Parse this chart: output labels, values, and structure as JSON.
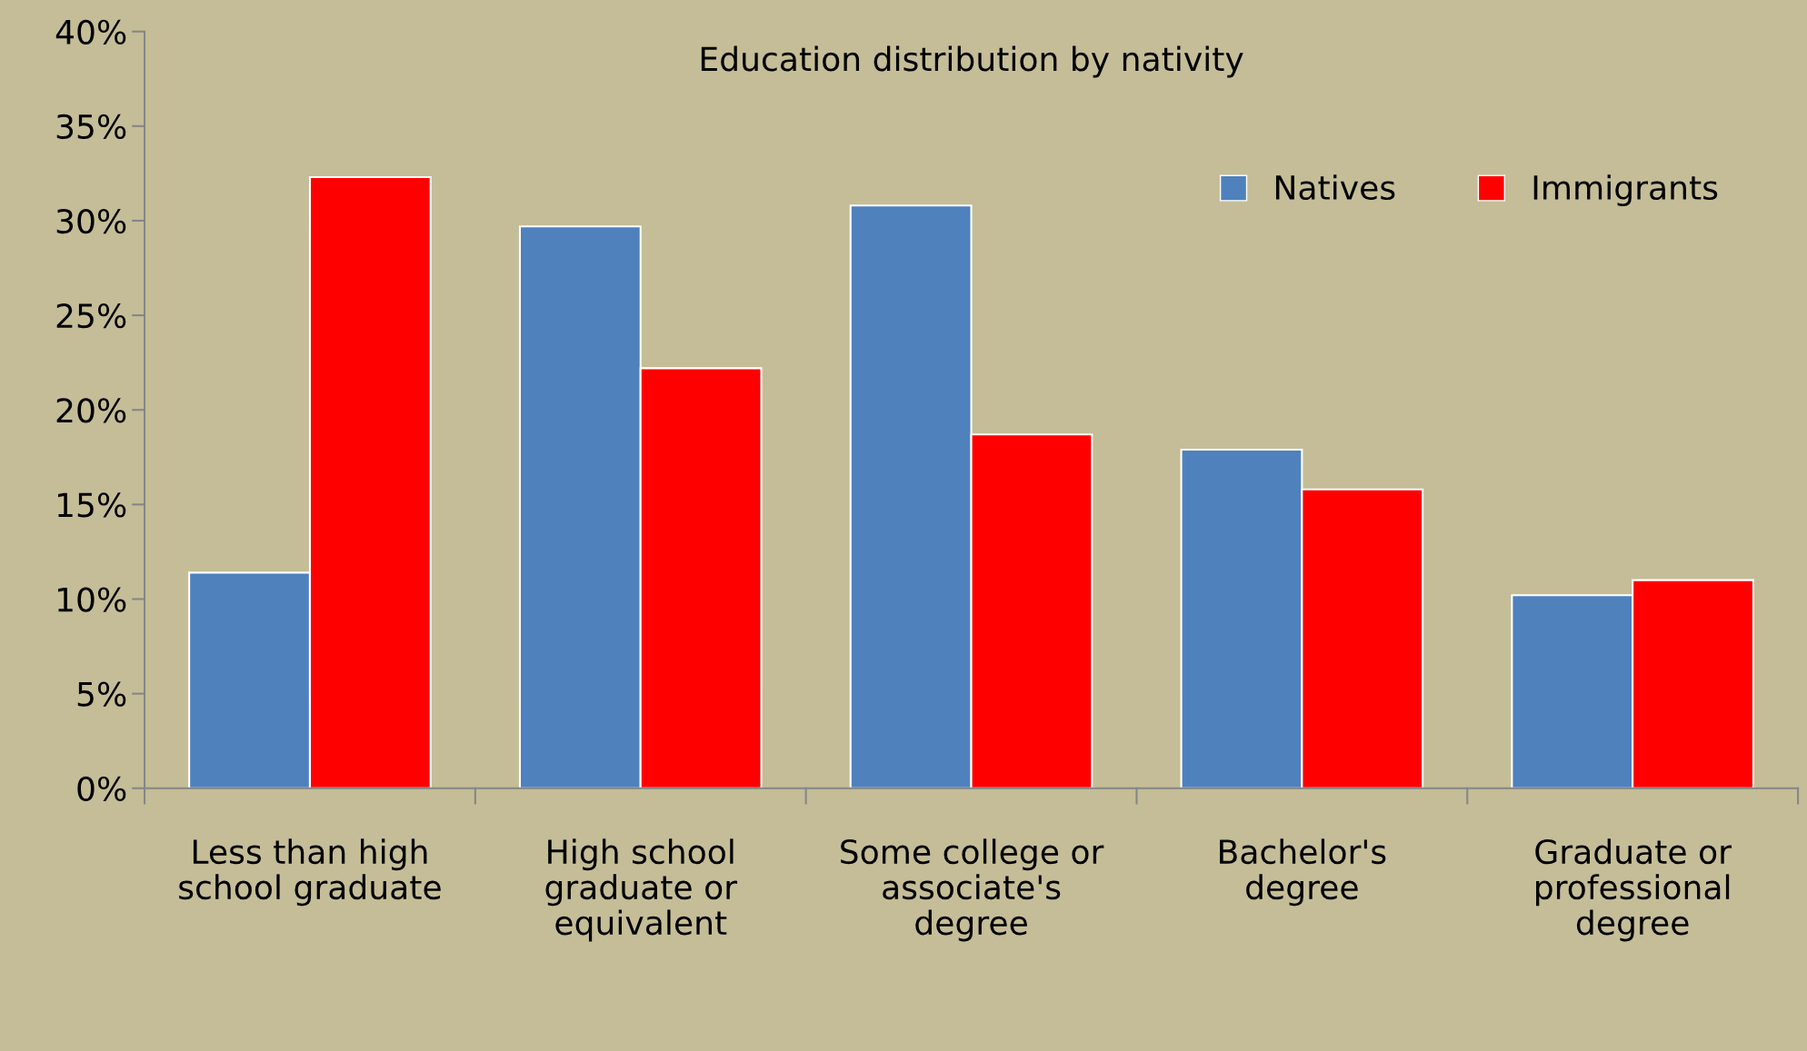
{
  "chart_data": {
    "type": "bar",
    "title": "Education distribution by nativity",
    "categories": [
      "Less than high\nschool graduate",
      "High school\ngraduate or\nequivalent",
      "Some college or\nassociate's\ndegree",
      "Bachelor's\ndegree",
      "Graduate or\nprofessional\ndegree"
    ],
    "series": [
      {
        "name": "Natives",
        "color": "#4f81bd",
        "values": [
          11.4,
          29.7,
          30.8,
          17.9,
          10.2
        ]
      },
      {
        "name": "Immigrants",
        "color": "#ff0000",
        "values": [
          32.3,
          22.2,
          18.7,
          15.8,
          11.0
        ]
      }
    ],
    "ylim": [
      0,
      40
    ],
    "yticks": [
      {
        "value": 0,
        "label": "0%"
      },
      {
        "value": 5,
        "label": "5%"
      },
      {
        "value": 10,
        "label": "10%"
      },
      {
        "value": 15,
        "label": "15%"
      },
      {
        "value": 20,
        "label": "20%"
      },
      {
        "value": 25,
        "label": "25%"
      },
      {
        "value": 30,
        "label": "30%"
      },
      {
        "value": 35,
        "label": "35%"
      },
      {
        "value": 40,
        "label": "40%"
      }
    ],
    "grid": false,
    "legend": "top right"
  }
}
